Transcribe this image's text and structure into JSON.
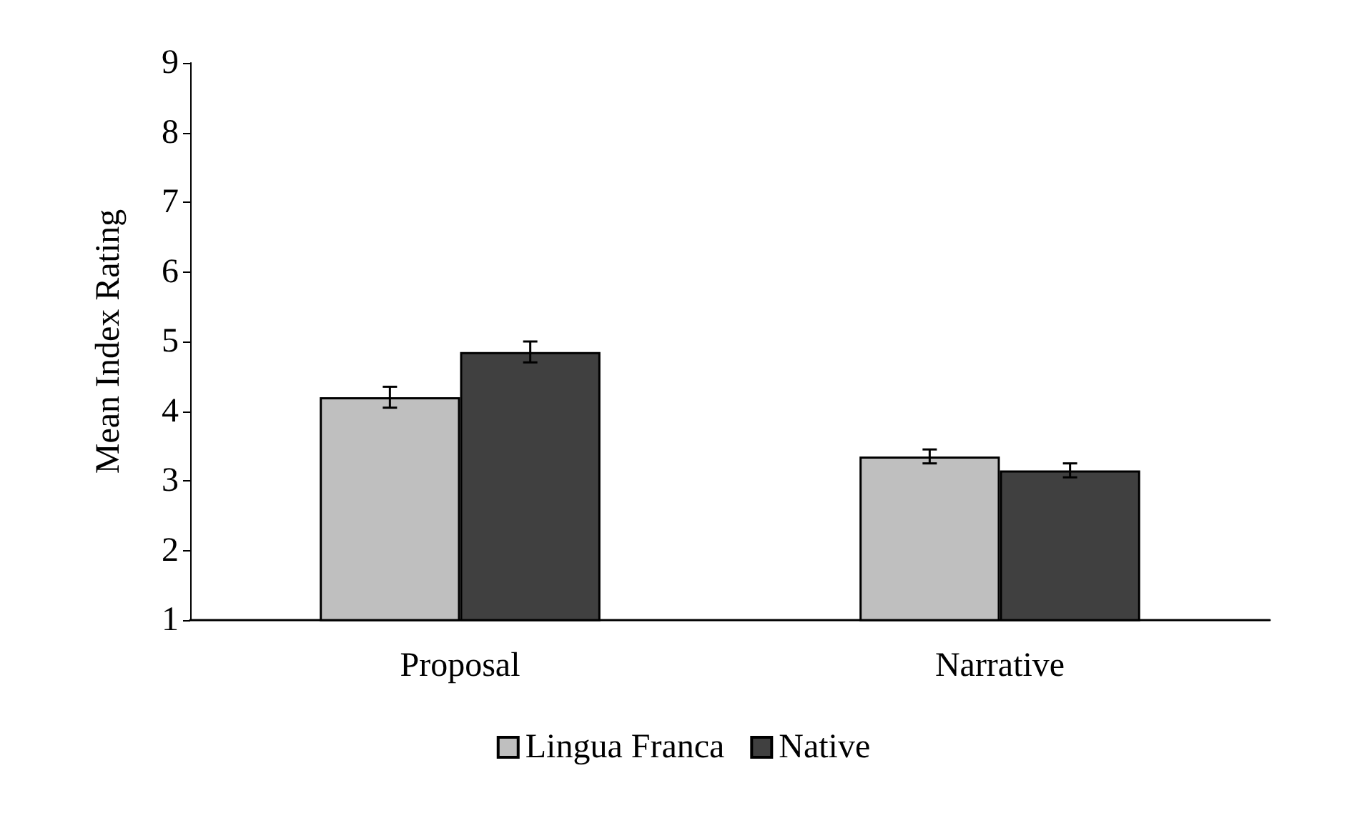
{
  "chart_data": {
    "type": "bar",
    "ylabel": "Mean Index Rating",
    "categories": [
      "Proposal",
      "Narrative"
    ],
    "series": [
      {
        "name": "Lingua Franca",
        "color": "#bfbfbf",
        "values": [
          4.2,
          3.35
        ],
        "errors": [
          0.15,
          0.1
        ]
      },
      {
        "name": "Native",
        "color": "#404040",
        "values": [
          4.85,
          3.15
        ],
        "errors": [
          0.15,
          0.1
        ]
      }
    ],
    "ylim": [
      1,
      9
    ],
    "yticks": [
      1,
      2,
      3,
      4,
      5,
      6,
      7,
      8,
      9
    ],
    "grid": false,
    "legend": "bottom"
  }
}
